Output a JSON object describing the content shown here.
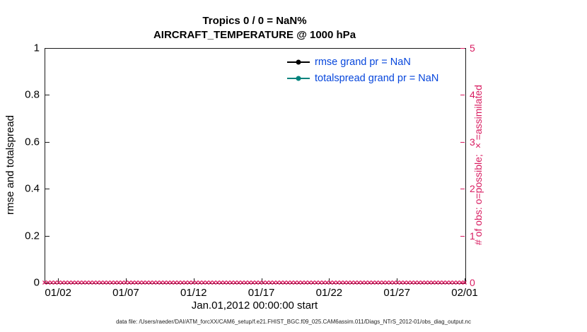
{
  "figure": {
    "title_line1": "Tropics 0 / 0 = NaN%",
    "title_line2": "AIRCRAFT_TEMPERATURE @ 1000 hPa",
    "xlabel": "Jan.01,2012 00:00:00 start",
    "ylabel_left": "rmse and totalspread",
    "ylabel_right": "# of obs: o=possible; ×=assimilated",
    "footer": "data file: /Users/raeder/DAI/ATM_forcXX/CAM6_setup/f.e21.FHIST_BGC.f09_025.CAM6assim.011/Diags_NTrS_2012-01/obs_diag_output.nc",
    "marker_glyph": "×",
    "colors": {
      "obs": "#D81B60",
      "rmse": "#000000",
      "totalspread": "#00837D",
      "legend_text": "#0646DC"
    }
  },
  "legend": {
    "items": [
      {
        "label": "rmse grand pr = NaN",
        "color": "#000000"
      },
      {
        "label": "totalspread grand pr = NaN",
        "color": "#00837D"
      }
    ]
  },
  "chart_data": {
    "type": "line",
    "title": "Tropics 0 / 0 = NaN% — AIRCRAFT_TEMPERATURE @ 1000 hPa",
    "xlabel": "Jan.01,2012 00:00:00 start",
    "x_ticks": [
      "01/02",
      "01/07",
      "01/12",
      "01/17",
      "01/22",
      "01/27",
      "02/01"
    ],
    "x_tick_days": [
      1,
      6,
      11,
      16,
      21,
      26,
      31
    ],
    "x_range_days": [
      0,
      31
    ],
    "y_left": {
      "label": "rmse and totalspread",
      "ticks": [
        "0",
        "0.2",
        "0.4",
        "0.6",
        "0.8",
        "1"
      ],
      "tick_values": [
        0,
        0.2,
        0.4,
        0.6,
        0.8,
        1
      ],
      "range": [
        0,
        1
      ]
    },
    "y_right": {
      "label": "# of obs: o=possible; ×=assimilated",
      "ticks": [
        "0",
        "1",
        "2",
        "3",
        "4",
        "5"
      ],
      "tick_values": [
        0,
        1,
        2,
        3,
        4,
        5
      ],
      "range": [
        0,
        5
      ]
    },
    "series": [
      {
        "name": "rmse grand pr = NaN",
        "axis": "left",
        "color": "#000000",
        "values": [],
        "grand_mean": "NaN"
      },
      {
        "name": "totalspread grand pr = NaN",
        "axis": "left",
        "color": "#00837D",
        "values": [],
        "grand_mean": "NaN"
      }
    ],
    "obs_counts": {
      "axis": "right",
      "possible": 0,
      "assimilated": 0,
      "constant_value": 0,
      "marker_count": 120
    },
    "grid": false,
    "legend_position": "top-right-inside"
  }
}
